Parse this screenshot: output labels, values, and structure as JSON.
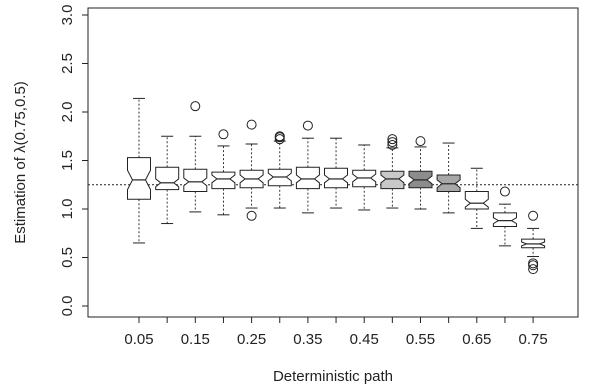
{
  "chart_data": {
    "type": "boxplot",
    "xlabel": "Deterministic path",
    "ylabel": "Estimation of λ(0.75,0.5)",
    "ylim": [
      0.0,
      3.0
    ],
    "yticks": [
      "0.0",
      "0.5",
      "1.0",
      "1.5",
      "2.0",
      "2.5",
      "3.0"
    ],
    "xtick_labels": [
      "0.05",
      "0.15",
      "0.25",
      "0.35",
      "0.45",
      "0.55",
      "0.65",
      "0.75"
    ],
    "reference_line": 1.25,
    "notched": true,
    "colors": {
      "white": "#ffffff",
      "light_gray": "#c8c8c8",
      "mid_gray": "#a8a8a8",
      "dark_gray": "#8c8c8c",
      "stroke": "#222222"
    },
    "boxes": [
      {
        "x": 0.05,
        "whisker_low": 0.65,
        "q1": 1.1,
        "median": 1.3,
        "q3": 1.53,
        "whisker_high": 2.14,
        "notch_low": 1.2,
        "notch_high": 1.4,
        "outliers": [],
        "fill": "white"
      },
      {
        "x": 0.1,
        "whisker_low": 0.85,
        "q1": 1.2,
        "median": 1.27,
        "q3": 1.43,
        "whisker_high": 1.75,
        "notch_low": 1.23,
        "notch_high": 1.31,
        "outliers": [],
        "fill": "white"
      },
      {
        "x": 0.15,
        "whisker_low": 0.97,
        "q1": 1.18,
        "median": 1.28,
        "q3": 1.41,
        "whisker_high": 1.75,
        "notch_low": 1.24,
        "notch_high": 1.32,
        "outliers": [
          2.06
        ],
        "fill": "white"
      },
      {
        "x": 0.2,
        "whisker_low": 0.94,
        "q1": 1.21,
        "median": 1.31,
        "q3": 1.38,
        "whisker_high": 1.65,
        "notch_low": 1.27,
        "notch_high": 1.35,
        "outliers": [
          1.77
        ],
        "fill": "white"
      },
      {
        "x": 0.25,
        "whisker_low": 1.01,
        "q1": 1.22,
        "median": 1.31,
        "q3": 1.4,
        "whisker_high": 1.67,
        "notch_low": 1.27,
        "notch_high": 1.35,
        "outliers": [
          0.93,
          1.87
        ],
        "fill": "white"
      },
      {
        "x": 0.3,
        "whisker_low": 1.01,
        "q1": 1.24,
        "median": 1.33,
        "q3": 1.41,
        "whisker_high": 1.7,
        "notch_low": 1.29,
        "notch_high": 1.37,
        "outliers": [
          1.72,
          1.74,
          1.75
        ],
        "fill": "white"
      },
      {
        "x": 0.35,
        "whisker_low": 0.96,
        "q1": 1.21,
        "median": 1.31,
        "q3": 1.43,
        "whisker_high": 1.73,
        "notch_low": 1.27,
        "notch_high": 1.35,
        "outliers": [
          1.86
        ],
        "fill": "white"
      },
      {
        "x": 0.4,
        "whisker_low": 1.01,
        "q1": 1.22,
        "median": 1.31,
        "q3": 1.42,
        "whisker_high": 1.73,
        "notch_low": 1.27,
        "notch_high": 1.35,
        "outliers": [],
        "fill": "white"
      },
      {
        "x": 0.45,
        "whisker_low": 0.99,
        "q1": 1.23,
        "median": 1.32,
        "q3": 1.4,
        "whisker_high": 1.66,
        "notch_low": 1.28,
        "notch_high": 1.36,
        "outliers": [],
        "fill": "white"
      },
      {
        "x": 0.5,
        "whisker_low": 1.01,
        "q1": 1.21,
        "median": 1.31,
        "q3": 1.39,
        "whisker_high": 1.63,
        "notch_low": 1.27,
        "notch_high": 1.35,
        "outliers": [
          1.66,
          1.69,
          1.72
        ],
        "fill": "light_gray"
      },
      {
        "x": 0.55,
        "whisker_low": 1.0,
        "q1": 1.22,
        "median": 1.3,
        "q3": 1.39,
        "whisker_high": 1.64,
        "notch_low": 1.26,
        "notch_high": 1.34,
        "outliers": [
          1.7
        ],
        "fill": "dark_gray"
      },
      {
        "x": 0.6,
        "whisker_low": 0.96,
        "q1": 1.18,
        "median": 1.26,
        "q3": 1.35,
        "whisker_high": 1.68,
        "notch_low": 1.22,
        "notch_high": 1.3,
        "outliers": [],
        "fill": "mid_gray"
      },
      {
        "x": 0.65,
        "whisker_low": 0.8,
        "q1": 1.0,
        "median": 1.06,
        "q3": 1.18,
        "whisker_high": 1.42,
        "notch_low": 1.02,
        "notch_high": 1.1,
        "outliers": [],
        "fill": "white"
      },
      {
        "x": 0.7,
        "whisker_low": 0.62,
        "q1": 0.82,
        "median": 0.88,
        "q3": 0.96,
        "whisker_high": 1.05,
        "notch_low": 0.85,
        "notch_high": 0.91,
        "outliers": [
          1.18
        ],
        "fill": "white"
      },
      {
        "x": 0.75,
        "whisker_low": 0.51,
        "q1": 0.6,
        "median": 0.64,
        "q3": 0.69,
        "whisker_high": 0.8,
        "notch_low": 0.62,
        "notch_high": 0.66,
        "outliers": [
          0.38,
          0.42,
          0.44,
          0.93
        ],
        "fill": "white"
      }
    ]
  }
}
